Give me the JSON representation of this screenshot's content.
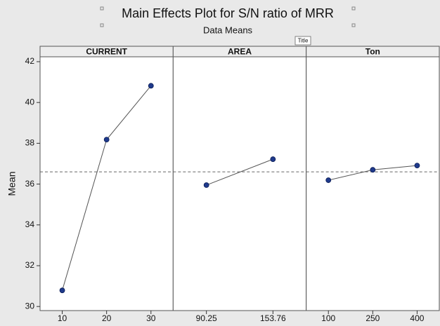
{
  "title": "Main Effects Plot for S/N ratio of MRR",
  "subtitle": "Data Means",
  "tooltip": "Title",
  "reference_line": 36.6,
  "chart_data": [
    {
      "type": "line",
      "title": "CURRENT",
      "y_label": "Mean",
      "categories": [
        "10",
        "20",
        "30"
      ],
      "values": [
        30.79,
        38.18,
        40.82
      ],
      "color": "#1f3a8c",
      "line_color": "#555555",
      "ylim": [
        29.8,
        42.24
      ],
      "yticks": [
        30,
        32,
        34,
        36,
        38,
        40,
        42
      ]
    },
    {
      "type": "line",
      "title": "AREA",
      "categories": [
        "90.25",
        "153.76"
      ],
      "values": [
        35.95,
        37.22
      ],
      "color": "#1f3a8c",
      "line_color": "#555555",
      "ylim": [
        29.8,
        42.24
      ]
    },
    {
      "type": "line",
      "title": "Ton",
      "categories": [
        "100",
        "250",
        "400"
      ],
      "values": [
        36.19,
        36.7,
        36.91
      ],
      "color": "#1f3a8c",
      "line_color": "#555555",
      "ylim": [
        29.8,
        42.24
      ]
    }
  ]
}
